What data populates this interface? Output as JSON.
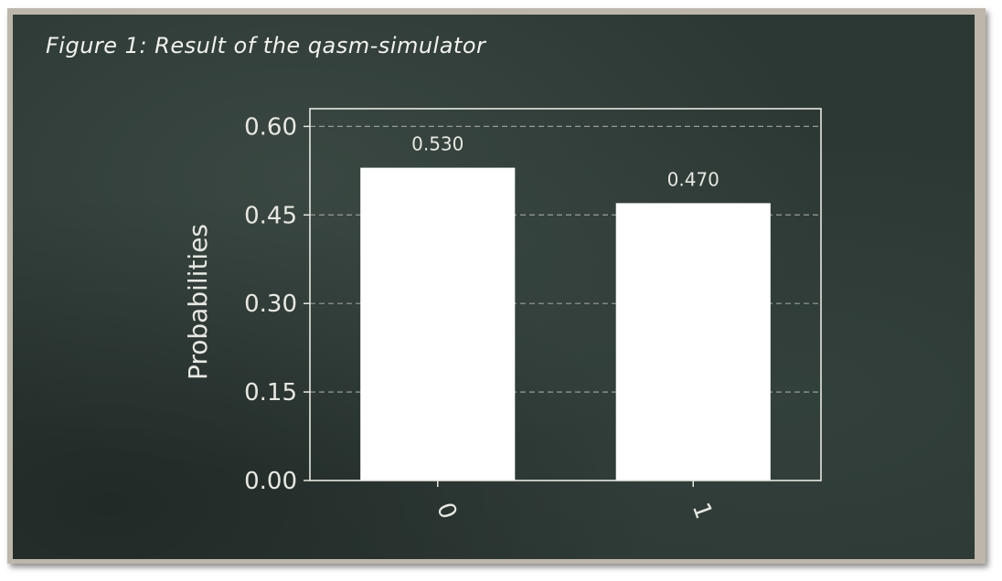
{
  "figure_title": "Figure 1: Result of the qasm-simulator",
  "colors": {
    "board": "#2c3834",
    "frame": "#bdb6ab",
    "bar": "#ffffff",
    "axis": "#e8e8e2",
    "grid": "#9a9c96"
  },
  "chart_data": {
    "type": "bar",
    "categories": [
      "0",
      "1"
    ],
    "values": [
      0.53,
      0.47
    ],
    "data_labels": [
      "0.530",
      "0.470"
    ],
    "ylabel": "Probabilities",
    "xlabel": "",
    "ylim": [
      0,
      0.63
    ],
    "yticks": [
      0.0,
      0.15,
      0.3,
      0.45,
      0.6
    ],
    "ytick_labels": [
      "0.00",
      "0.15",
      "0.30",
      "0.45",
      "0.60"
    ],
    "grid": "horizontal dashed",
    "legend": "none"
  }
}
